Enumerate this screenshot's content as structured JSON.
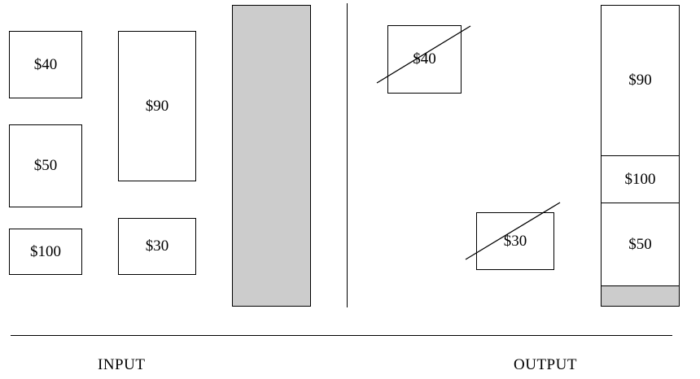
{
  "colors": {
    "bin_fill": "#cccccc",
    "stroke": "#000000",
    "background": "#ffffff"
  },
  "input": {
    "items": [
      {
        "label": "$40"
      },
      {
        "label": "$50"
      },
      {
        "label": "$100"
      },
      {
        "label": "$90"
      },
      {
        "label": "$30"
      }
    ]
  },
  "output": {
    "rejected": [
      {
        "label": "$40",
        "crossed_out": true
      },
      {
        "label": "$30",
        "crossed_out": true
      }
    ],
    "packed": [
      {
        "label": "$90"
      },
      {
        "label": "$100"
      },
      {
        "label": "$50"
      }
    ]
  },
  "captions": {
    "input": "INPUT",
    "output": "OUTPUT"
  }
}
